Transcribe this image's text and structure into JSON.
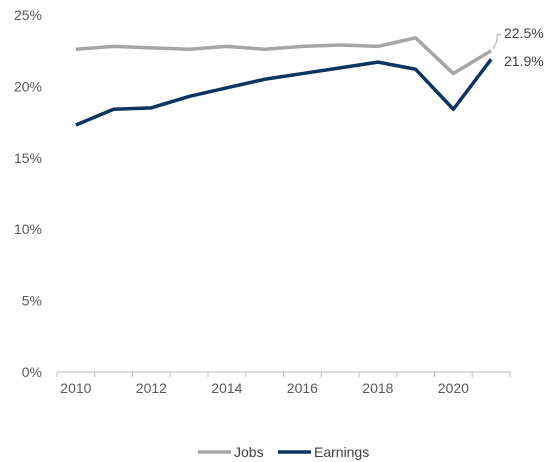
{
  "chart_data": {
    "type": "line",
    "x": [
      2010,
      2011,
      2012,
      2013,
      2014,
      2015,
      2016,
      2017,
      2018,
      2019,
      2020,
      2021
    ],
    "series": [
      {
        "name": "Jobs",
        "color": "#A6A6A6",
        "values": [
          22.6,
          22.8,
          22.7,
          22.6,
          22.8,
          22.6,
          22.8,
          22.9,
          22.8,
          23.4,
          20.9,
          22.5
        ],
        "end_label": "22.5%"
      },
      {
        "name": "Earnings",
        "color": "#0B3461",
        "values": [
          17.3,
          18.4,
          18.5,
          19.3,
          19.9,
          20.5,
          20.9,
          21.3,
          21.7,
          21.2,
          18.4,
          21.9
        ],
        "end_label": "21.9%"
      }
    ],
    "xticks": [
      "2010",
      "2012",
      "2014",
      "2016",
      "2018",
      "2020"
    ],
    "yticks": [
      "0%",
      "5%",
      "10%",
      "15%",
      "20%",
      "25%"
    ],
    "ylim": [
      0,
      25
    ],
    "xlim": [
      2009.5,
      2021.5
    ],
    "grid": false,
    "legend_position": "bottom-center"
  }
}
